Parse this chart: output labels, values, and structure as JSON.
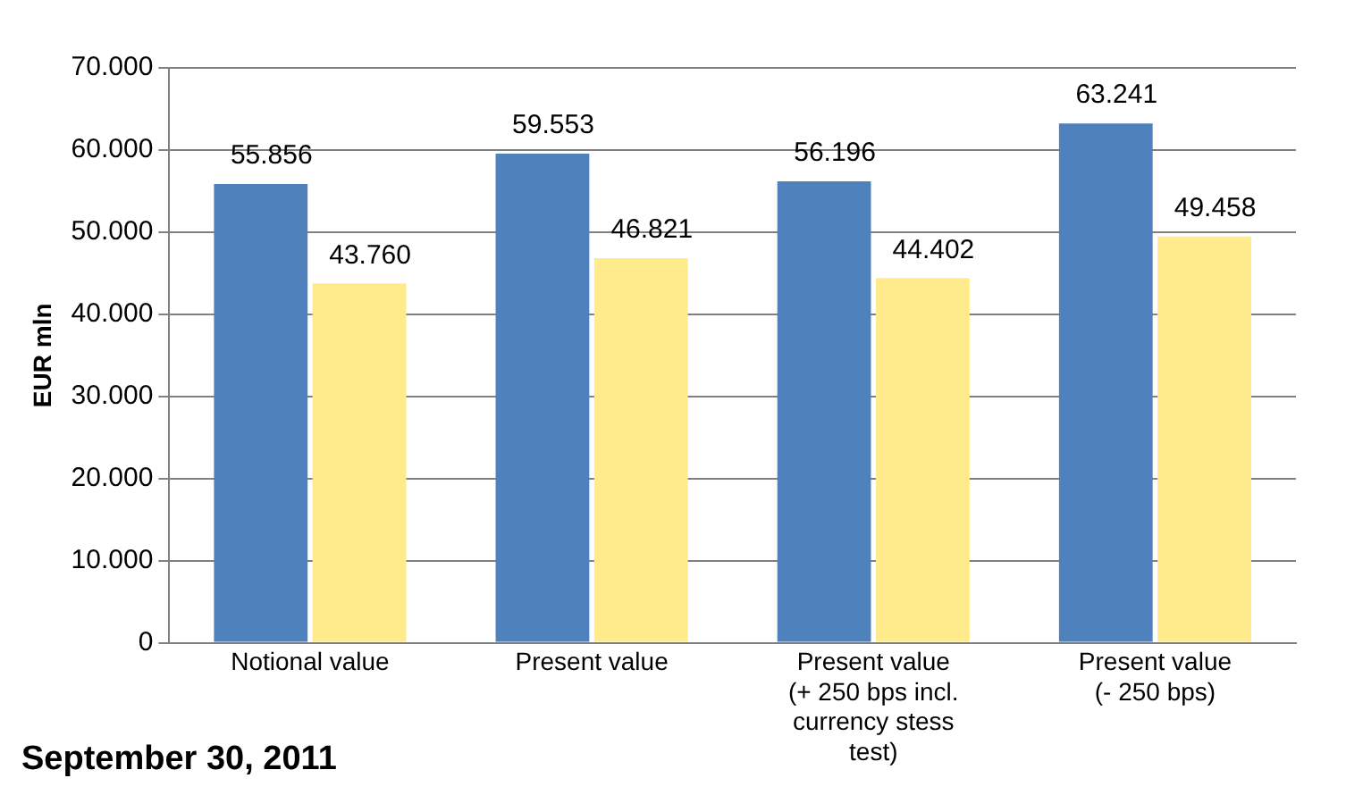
{
  "chart_data": {
    "type": "bar",
    "ylabel": "EUR mln",
    "categories": [
      "Notional value",
      "Present value",
      "Present value\n(+ 250 bps incl.\ncurrency stess\ntest)",
      "Present value\n(- 250 bps)"
    ],
    "series": [
      {
        "color": "#4f81bd",
        "values": [
          55856,
          59553,
          56196,
          63241
        ],
        "value_labels": [
          "55.856",
          "59.553",
          "56.196",
          "63.241"
        ]
      },
      {
        "color": "#ffeb8c",
        "values": [
          43760,
          46821,
          44402,
          49458
        ],
        "value_labels": [
          "43.760",
          "46.821",
          "44.402",
          "49.458"
        ]
      }
    ],
    "ylim": [
      0,
      70000
    ],
    "yticks": [
      {
        "value": 0,
        "label": "0"
      },
      {
        "value": 10000,
        "label": "10.000"
      },
      {
        "value": 20000,
        "label": "20.000"
      },
      {
        "value": 30000,
        "label": "30.000"
      },
      {
        "value": 40000,
        "label": "40.000"
      },
      {
        "value": 50000,
        "label": "50.000"
      },
      {
        "value": 60000,
        "label": "60.000"
      },
      {
        "value": 70000,
        "label": "70.000"
      }
    ],
    "grid": "y",
    "legend": false,
    "annotations": [
      "September 30, 2011"
    ]
  }
}
